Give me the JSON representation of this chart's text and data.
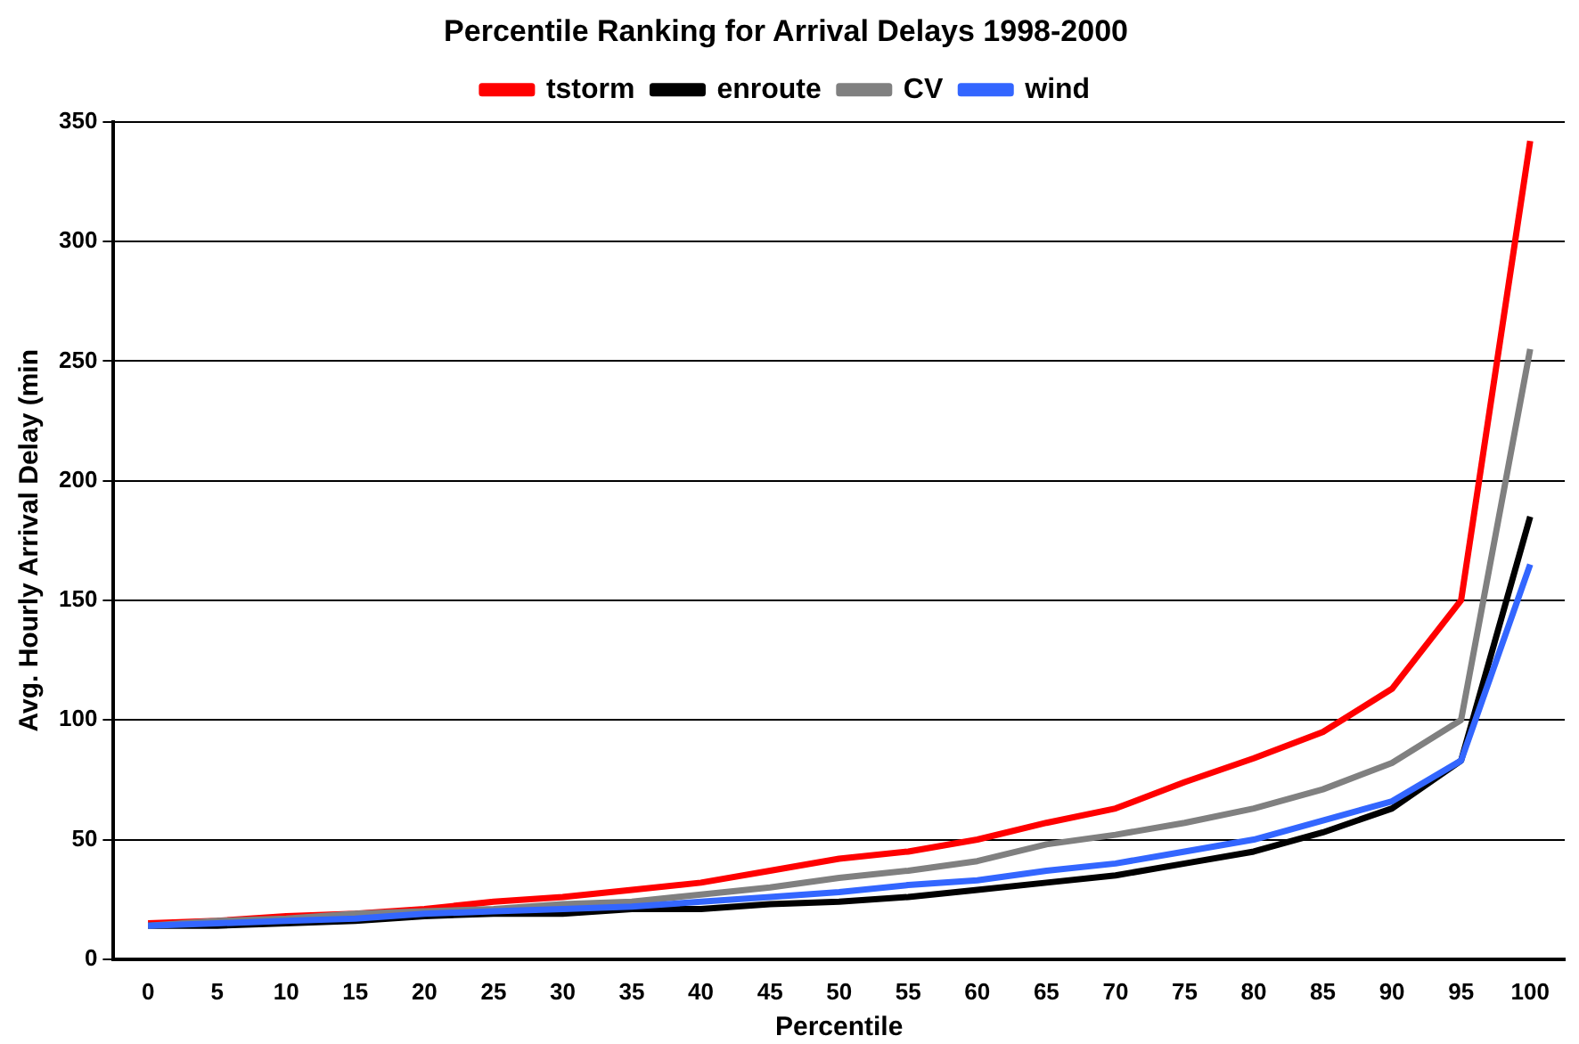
{
  "chart_data": {
    "type": "line",
    "title": "Percentile Ranking for Arrival Delays 1998-2000",
    "xlabel": "Percentile",
    "ylabel": "Avg. Hourly Arrival Delay (min",
    "categories": [
      "0",
      "5",
      "10",
      "15",
      "20",
      "25",
      "30",
      "35",
      "40",
      "45",
      "50",
      "55",
      "60",
      "65",
      "70",
      "75",
      "80",
      "85",
      "90",
      "95",
      "100"
    ],
    "series": [
      {
        "name": "tstorm",
        "color": "#ff0000",
        "values": [
          15,
          16,
          18,
          19,
          21,
          24,
          26,
          29,
          32,
          37,
          42,
          45,
          50,
          57,
          63,
          74,
          84,
          95,
          113,
          150,
          342
        ]
      },
      {
        "name": "enroute",
        "color": "#000000",
        "values": [
          14,
          14,
          15,
          16,
          18,
          19,
          19,
          21,
          21,
          23,
          24,
          26,
          29,
          32,
          35,
          40,
          45,
          53,
          63,
          83,
          185
        ]
      },
      {
        "name": "CV",
        "color": "#808080",
        "values": [
          14,
          16,
          17,
          19,
          20,
          21,
          23,
          24,
          27,
          30,
          34,
          37,
          41,
          48,
          52,
          57,
          63,
          71,
          82,
          100,
          255
        ]
      },
      {
        "name": "wind",
        "color": "#3366ff",
        "values": [
          14,
          15,
          16,
          17,
          19,
          20,
          21,
          22,
          24,
          26,
          28,
          31,
          33,
          37,
          40,
          45,
          50,
          58,
          66,
          83,
          165
        ]
      }
    ],
    "ylim": [
      0,
      350
    ],
    "yticks": [
      0,
      50,
      100,
      150,
      200,
      250,
      300,
      350
    ],
    "grid": "y",
    "legend": "top",
    "marker": "none",
    "line_style": "solid"
  }
}
